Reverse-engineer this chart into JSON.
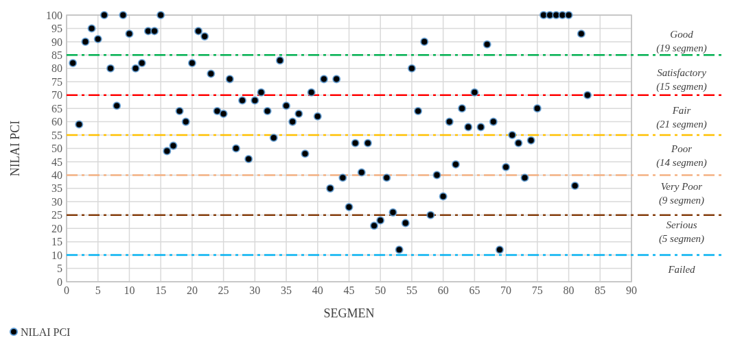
{
  "chart_data": {
    "type": "scatter",
    "xlabel": "SEGMEN",
    "ylabel": "NILAI PCI",
    "xlim": [
      0,
      90
    ],
    "xticks": [
      0,
      5,
      10,
      15,
      20,
      25,
      30,
      35,
      40,
      45,
      50,
      55,
      60,
      65,
      70,
      75,
      80,
      85,
      90
    ],
    "ylim": [
      0,
      100
    ],
    "yticks": [
      0,
      5,
      10,
      15,
      20,
      25,
      30,
      35,
      40,
      45,
      50,
      55,
      60,
      65,
      70,
      75,
      80,
      85,
      90,
      95,
      100
    ],
    "grid": true,
    "legend": "bottom left",
    "marker": "circle",
    "series": [
      {
        "name": "NILAI PCI",
        "color": "#000000",
        "x": [
          1,
          2,
          3,
          4,
          5,
          6,
          7,
          8,
          9,
          10,
          11,
          12,
          13,
          14,
          15,
          16,
          17,
          18,
          19,
          20,
          21,
          22,
          23,
          24,
          25,
          26,
          27,
          28,
          29,
          30,
          31,
          32,
          33,
          34,
          35,
          36,
          37,
          38,
          39,
          40,
          41,
          42,
          43,
          44,
          45,
          46,
          47,
          48,
          49,
          50,
          51,
          52,
          53,
          54,
          55,
          56,
          57,
          58,
          59,
          60,
          61,
          62,
          63,
          64,
          65,
          66,
          67,
          68,
          69,
          70,
          71,
          72,
          73,
          74,
          75,
          76,
          77,
          78,
          79,
          80,
          81,
          82,
          83
        ],
        "values": [
          82,
          59,
          90,
          95,
          91,
          100,
          80,
          66,
          100,
          93,
          80,
          82,
          94,
          94,
          100,
          49,
          51,
          64,
          60,
          82,
          94,
          92,
          78,
          64,
          63,
          76,
          50,
          68,
          46,
          68,
          71,
          64,
          54,
          83,
          66,
          60,
          63,
          48,
          71,
          62,
          76,
          35,
          76,
          39,
          28,
          52,
          41,
          52,
          21,
          23,
          39,
          26,
          12,
          22,
          80,
          64,
          90,
          25,
          40,
          32,
          60,
          44,
          65,
          58,
          71,
          58,
          89,
          60,
          12,
          43,
          55,
          52,
          39,
          53,
          65,
          100,
          100,
          100,
          100,
          100,
          36,
          93,
          70
        ]
      }
    ],
    "ref_lines": [
      {
        "axis": "y",
        "value": 85,
        "color": "#00b050",
        "line_style": "dashed"
      },
      {
        "axis": "y",
        "value": 70,
        "color": "#ff0000",
        "line_style": "dashed"
      },
      {
        "axis": "y",
        "value": 55,
        "color": "#ffc000",
        "line_style": "dashed"
      },
      {
        "axis": "y",
        "value": 40,
        "color": "#f4b183",
        "line_style": "dashed"
      },
      {
        "axis": "y",
        "value": 25,
        "color": "#843c0c",
        "line_style": "dashed"
      },
      {
        "axis": "y",
        "value": 10,
        "color": "#00b0f0",
        "line_style": "dashed"
      }
    ],
    "annotations": [
      "Good\n(19 segmen)",
      "Satisfactory\n(15 segmen)",
      "Fair\n(21 segmen)",
      "Poor\n(14 segmen)",
      "Very Poor\n(9 segmen)",
      "Serious\n(5 segmen)",
      "Failed"
    ]
  }
}
